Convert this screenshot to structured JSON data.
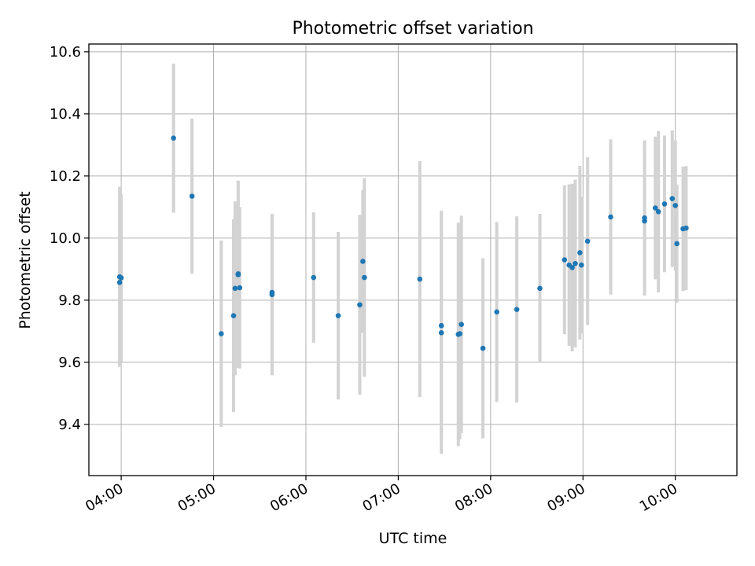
{
  "chart_data": {
    "type": "scatter",
    "title": "Photometric offset variation",
    "xlabel": "UTC time",
    "ylabel": "Photometric offset",
    "x_tick_labels": [
      "04:00",
      "05:00",
      "06:00",
      "07:00",
      "08:00",
      "09:00",
      "10:00"
    ],
    "y_ticks": [
      9.4,
      9.6,
      9.8,
      10.0,
      10.2,
      10.4,
      10.6
    ],
    "y_tick_labels": [
      "9.4",
      "9.6",
      "9.8",
      "10.0",
      "10.2",
      "10.4",
      "10.6"
    ],
    "xlim": [
      "03:39",
      "10:40"
    ],
    "ylim": [
      9.235,
      10.625
    ],
    "grid": true,
    "colors": {
      "points": "#1f77b4",
      "errorbars": "#d3d3d3",
      "grid": "#b0b0b0"
    },
    "series": [
      {
        "x": [
          "03:59",
          "03:59",
          "04:00",
          "04:34",
          "04:46",
          "05:05",
          "05:13",
          "05:14",
          "05:16",
          "05:16",
          "05:17",
          "05:38",
          "05:38",
          "06:05",
          "06:21",
          "06:35",
          "06:37",
          "06:38",
          "07:14",
          "07:28",
          "07:28",
          "07:39",
          "07:41",
          "07:40",
          "07:55",
          "08:04",
          "08:17",
          "08:32",
          "08:48",
          "08:51",
          "08:53",
          "08:55",
          "08:58",
          "08:59",
          "09:03",
          "09:18",
          "09:40",
          "09:40",
          "09:47",
          "09:49",
          "09:53",
          "09:58",
          "10:00",
          "10:01",
          "10:05",
          "10:07"
        ],
        "y": [
          9.875,
          9.857,
          9.872,
          10.322,
          10.135,
          9.692,
          9.75,
          9.838,
          9.882,
          9.885,
          9.84,
          9.818,
          9.825,
          9.873,
          9.75,
          9.785,
          9.925,
          9.873,
          9.868,
          9.695,
          9.718,
          9.69,
          9.722,
          9.692,
          9.645,
          9.762,
          9.77,
          9.838,
          9.93,
          9.913,
          9.905,
          9.918,
          9.953,
          9.913,
          9.99,
          10.068,
          10.055,
          10.065,
          10.097,
          10.085,
          10.11,
          10.127,
          10.105,
          9.982,
          10.03,
          10.032
        ],
        "yerr": [
          0.29,
          0.27,
          0.27,
          0.24,
          0.25,
          0.3,
          0.31,
          0.28,
          0.3,
          0.3,
          0.26,
          0.26,
          0.25,
          0.21,
          0.27,
          0.29,
          0.23,
          0.32,
          0.38,
          0.39,
          0.37,
          0.36,
          0.35,
          0.34,
          0.29,
          0.29,
          0.3,
          0.24,
          0.24,
          0.26,
          0.27,
          0.27,
          0.28,
          0.22,
          0.27,
          0.25,
          0.24,
          0.25,
          0.23,
          0.26,
          0.22,
          0.22,
          0.21,
          0.19,
          0.2,
          0.2
        ]
      }
    ]
  }
}
